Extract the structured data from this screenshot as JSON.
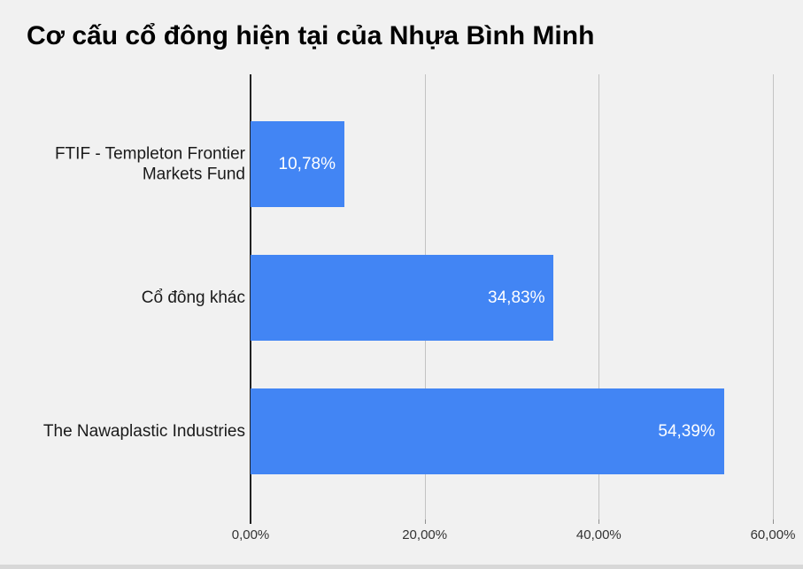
{
  "page": {
    "background": "#f1f1f1"
  },
  "chart_data": {
    "type": "bar",
    "orientation": "horizontal",
    "title": "Cơ cấu cổ đông hiện tại của Nhựa Bình Minh",
    "categories": [
      "FTIF - Templeton Frontier Markets Fund",
      "Cổ đông khác",
      "The Nawaplastic Industries"
    ],
    "values": [
      10.78,
      34.83,
      54.39
    ],
    "value_labels": [
      "10,78%",
      "34,83%",
      "54,39%"
    ],
    "x_ticks": [
      0,
      20,
      40,
      60
    ],
    "x_tick_labels": [
      "0,00%",
      "20,00%",
      "40,00%",
      "60,00%"
    ],
    "xlim": [
      0,
      60
    ],
    "xlabel": "",
    "ylabel": "",
    "bar_color": "#4285f4",
    "value_label_color": "#ffffff",
    "grid": true,
    "legend": "none"
  }
}
